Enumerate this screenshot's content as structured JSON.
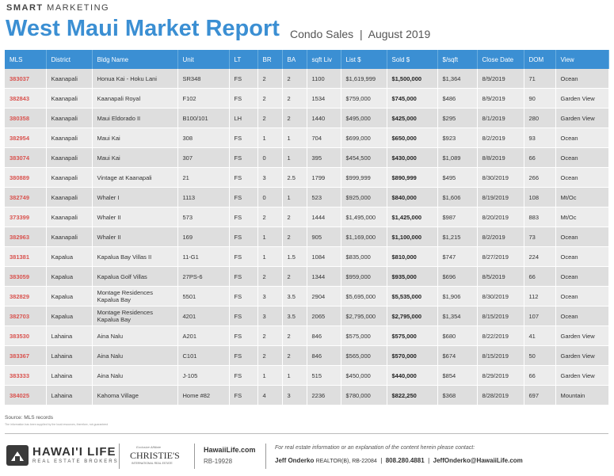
{
  "header": {
    "kicker_bold": "SMART",
    "kicker": "MARKETING",
    "title": "West Maui Market Report",
    "subtitle": "Condo Sales",
    "subtitle_date": "August 2019"
  },
  "table": {
    "columns": [
      "MLS",
      "District",
      "Bldg Name",
      "Unit",
      "LT",
      "BR",
      "BA",
      "sqft Liv",
      "List $",
      "Sold $",
      "$/sqft",
      "Close Date",
      "DOM",
      "View"
    ],
    "rows": [
      [
        "383037",
        "Kaanapali",
        "Honua Kai - Hoku Lani",
        "SR348",
        "FS",
        "2",
        "2",
        "1100",
        "$1,619,999",
        "$1,500,000",
        "$1,364",
        "8/9/2019",
        "71",
        "Ocean"
      ],
      [
        "382843",
        "Kaanapali",
        "Kaanapali Royal",
        "F102",
        "FS",
        "2",
        "2",
        "1534",
        "$759,000",
        "$745,000",
        "$486",
        "8/9/2019",
        "90",
        "Garden View"
      ],
      [
        "380358",
        "Kaanapali",
        "Maui Eldorado II",
        "B100/101",
        "LH",
        "2",
        "2",
        "1440",
        "$495,000",
        "$425,000",
        "$295",
        "8/1/2019",
        "280",
        "Garden View"
      ],
      [
        "382954",
        "Kaanapali",
        "Maui Kai",
        "308",
        "FS",
        "1",
        "1",
        "704",
        "$699,000",
        "$650,000",
        "$923",
        "8/2/2019",
        "93",
        "Ocean"
      ],
      [
        "383074",
        "Kaanapali",
        "Maui Kai",
        "307",
        "FS",
        "0",
        "1",
        "395",
        "$454,500",
        "$430,000",
        "$1,089",
        "8/8/2019",
        "66",
        "Ocean"
      ],
      [
        "380889",
        "Kaanapali",
        "Vintage at Kaanapali",
        "21",
        "FS",
        "3",
        "2.5",
        "1799",
        "$999,999",
        "$890,999",
        "$495",
        "8/30/2019",
        "266",
        "Ocean"
      ],
      [
        "382749",
        "Kaanapali",
        "Whaler I",
        "1113",
        "FS",
        "0",
        "1",
        "523",
        "$925,000",
        "$840,000",
        "$1,606",
        "8/19/2019",
        "108",
        "Mt/Oc"
      ],
      [
        "373399",
        "Kaanapali",
        "Whaler II",
        "573",
        "FS",
        "2",
        "2",
        "1444",
        "$1,495,000",
        "$1,425,000",
        "$987",
        "8/20/2019",
        "883",
        "Mt/Oc"
      ],
      [
        "382963",
        "Kaanapali",
        "Whaler II",
        "169",
        "FS",
        "1",
        "2",
        "905",
        "$1,169,000",
        "$1,100,000",
        "$1,215",
        "8/2/2019",
        "73",
        "Ocean"
      ],
      [
        "381381",
        "Kapalua",
        "Kapalua Bay Villas II",
        "11-G1",
        "FS",
        "1",
        "1.5",
        "1084",
        "$835,000",
        "$810,000",
        "$747",
        "8/27/2019",
        "224",
        "Ocean"
      ],
      [
        "383059",
        "Kapalua",
        "Kapalua Golf Villas",
        "27PS-6",
        "FS",
        "2",
        "2",
        "1344",
        "$959,000",
        "$935,000",
        "$696",
        "8/5/2019",
        "66",
        "Ocean"
      ],
      [
        "382829",
        "Kapalua",
        "Montage Residences Kapalua Bay",
        "5501",
        "FS",
        "3",
        "3.5",
        "2904",
        "$5,695,000",
        "$5,535,000",
        "$1,906",
        "8/30/2019",
        "112",
        "Ocean"
      ],
      [
        "382703",
        "Kapalua",
        "Montage Residences Kapalua Bay",
        "4201",
        "FS",
        "3",
        "3.5",
        "2065",
        "$2,795,000",
        "$2,795,000",
        "$1,354",
        "8/15/2019",
        "107",
        "Ocean"
      ],
      [
        "383530",
        "Lahaina",
        "Aina Nalu",
        "A201",
        "FS",
        "2",
        "2",
        "846",
        "$575,000",
        "$575,000",
        "$680",
        "8/22/2019",
        "41",
        "Garden View"
      ],
      [
        "383367",
        "Lahaina",
        "Aina Nalu",
        "C101",
        "FS",
        "2",
        "2",
        "846",
        "$565,000",
        "$570,000",
        "$674",
        "8/15/2019",
        "50",
        "Garden View"
      ],
      [
        "383333",
        "Lahaina",
        "Aina Nalu",
        "J-105",
        "FS",
        "1",
        "1",
        "515",
        "$450,000",
        "$440,000",
        "$854",
        "8/29/2019",
        "66",
        "Garden View"
      ],
      [
        "384025",
        "Lahaina",
        "Kahoma Village",
        "Home #82",
        "FS",
        "4",
        "3",
        "2236",
        "$780,000",
        "$822,250",
        "$368",
        "8/28/2019",
        "697",
        "Mountain"
      ]
    ]
  },
  "footer": {
    "source": "Source: MLS records",
    "disclaimer": "The information has been supplied by the local resources, therefore, not guaranteed",
    "brand": "HAWAI'I LIFE",
    "brand_sub": "REAL ESTATE BROKERS",
    "affiliate_note": "Exclusive Affiliate",
    "affiliate": "CHRISTIE'S",
    "affiliate_sub": "INTERNATIONAL REAL ESTATE",
    "website": "HawaiiLife.com",
    "license": "RB-19928",
    "contact_note": "For real estate information or an explanation of the content herein please contact:",
    "agent": "Jeff Onderko",
    "agent_title": "REALTOR(B), RB-22084",
    "phone": "808.280.4881",
    "email": "JeffOnderko@HawaiiLife.com"
  }
}
